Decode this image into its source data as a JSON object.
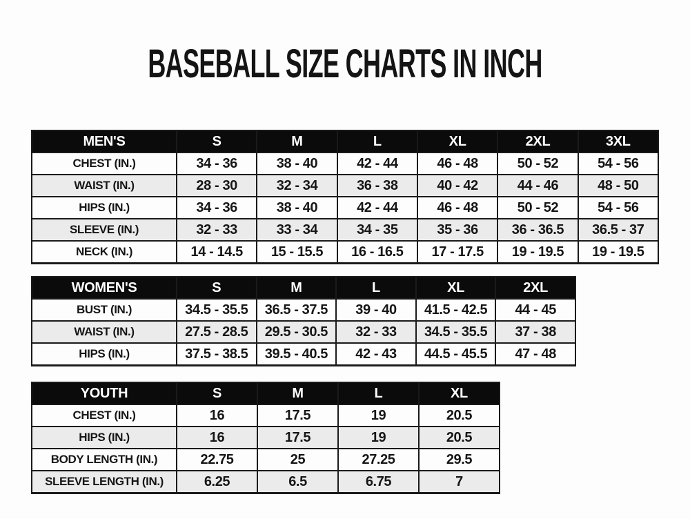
{
  "title": "BASEBALL SIZE CHARTS IN INCH",
  "colors": {
    "header_bg": "#0b0b0b",
    "header_text": "#ffffff",
    "row_bg": "#fdfdfd",
    "row_alt_bg": "#ebebeb",
    "border": "#1a1a1a",
    "text": "#161616",
    "page_bg": "#fdfdfd"
  },
  "chart_data": [
    {
      "type": "table",
      "name": "mens-size-chart",
      "columns": [
        "MEN'S",
        "S",
        "M",
        "L",
        "XL",
        "2XL",
        "3XL"
      ],
      "rows": [
        [
          "CHEST (IN.)",
          "34 - 36",
          "38 - 40",
          "42 - 44",
          "46 - 48",
          "50 - 52",
          "54 - 56"
        ],
        [
          "WAIST (IN.)",
          "28 - 30",
          "32 - 34",
          "36 - 38",
          "40 - 42",
          "44 - 46",
          "48 - 50"
        ],
        [
          "HIPS (IN.)",
          "34 - 36",
          "38 - 40",
          "42 - 44",
          "46 - 48",
          "50 - 52",
          "54 - 56"
        ],
        [
          "SLEEVE (IN.)",
          "32 - 33",
          "33 - 34",
          "34 - 35",
          "35 - 36",
          "36 - 36.5",
          "36.5 - 37"
        ],
        [
          "NECK (IN.)",
          "14 - 14.5",
          "15 - 15.5",
          "16 - 16.5",
          "17 - 17.5",
          "19 - 19.5",
          "19 - 19.5"
        ]
      ]
    },
    {
      "type": "table",
      "name": "womens-size-chart",
      "columns": [
        "WOMEN'S",
        "S",
        "M",
        "L",
        "XL",
        "2XL"
      ],
      "rows": [
        [
          "BUST (IN.)",
          "34.5 - 35.5",
          "36.5 - 37.5",
          "39 - 40",
          "41.5 - 42.5",
          "44 - 45"
        ],
        [
          "WAIST (IN.)",
          "27.5 - 28.5",
          "29.5 - 30.5",
          "32 - 33",
          "34.5 - 35.5",
          "37 - 38"
        ],
        [
          "HIPS (IN.)",
          "37.5 - 38.5",
          "39.5 - 40.5",
          "42 - 43",
          "44.5 - 45.5",
          "47 - 48"
        ]
      ]
    },
    {
      "type": "table",
      "name": "youth-size-chart",
      "columns": [
        "YOUTH",
        "S",
        "M",
        "L",
        "XL"
      ],
      "rows": [
        [
          "CHEST (IN.)",
          "16",
          "17.5",
          "19",
          "20.5"
        ],
        [
          "HIPS (IN.)",
          "16",
          "17.5",
          "19",
          "20.5"
        ],
        [
          "BODY LENGTH (IN.)",
          "22.75",
          "25",
          "27.25",
          "29.5"
        ],
        [
          "SLEEVE LENGTH (IN.)",
          "6.25",
          "6.5",
          "6.75",
          "7"
        ]
      ]
    }
  ]
}
